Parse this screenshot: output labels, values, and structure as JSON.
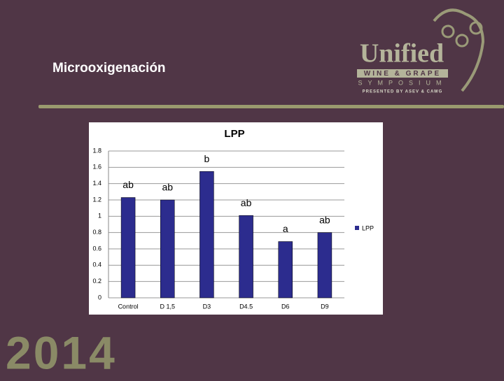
{
  "slide": {
    "title": "Microoxigenación",
    "logo": {
      "name": "Unified",
      "line1": "WINE & GRAPE",
      "line2": "SYMPOSIUM",
      "line3": "PRESENTED BY ASEV & CAWG"
    },
    "year": "2014"
  },
  "chart_data": {
    "type": "bar",
    "title": "LPP",
    "categories": [
      "Control",
      "D 1,5",
      "D3",
      "D4.5",
      "D6",
      "D9"
    ],
    "series": [
      {
        "name": "LPP",
        "color": "#2c2c8e",
        "values": [
          1.23,
          1.2,
          1.55,
          1.01,
          0.69,
          0.8
        ]
      }
    ],
    "annotations": [
      "ab",
      "ab",
      "b",
      "ab",
      "a",
      "ab"
    ],
    "ylim": [
      0,
      1.8
    ],
    "yticks": [
      0,
      0.2,
      0.4,
      0.6,
      0.8,
      1,
      1.2,
      1.4,
      1.6,
      1.8
    ],
    "grid": true,
    "legend": "right"
  }
}
